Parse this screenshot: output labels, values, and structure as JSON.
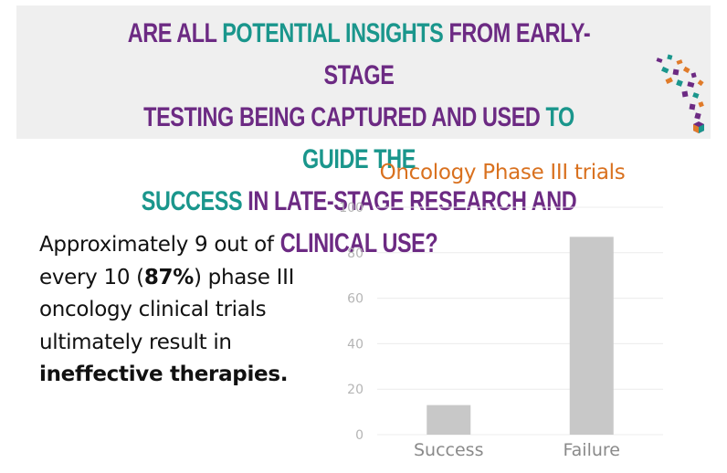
{
  "banner": {
    "line1": [
      {
        "text": "Are all ",
        "color": "purple"
      },
      {
        "text": "potential insights",
        "color": "teal"
      },
      {
        "text": " from early-stage",
        "color": "purple"
      }
    ],
    "line2": [
      {
        "text": "testing being captured and used ",
        "color": "purple"
      },
      {
        "text": "to guide the",
        "color": "teal"
      }
    ],
    "line3": [
      {
        "text": "success",
        "color": "teal"
      },
      {
        "text": " in late-stage research and clinical use?",
        "color": "purple"
      }
    ],
    "colors": {
      "purple": "#6c2a83",
      "teal": "#1a968c"
    }
  },
  "body": {
    "part1": "Approximately 9 out of every 10 (",
    "highlight": "87%",
    "part2": ") phase III oncology clinical trials ultimately result in ",
    "emphasis": "ineffective therapies."
  },
  "chart_data": {
    "type": "bar",
    "title": "Oncology Phase III trials",
    "categories": [
      "Success",
      "Failure"
    ],
    "values": [
      13,
      87
    ],
    "ylim": [
      0,
      100
    ],
    "yticks": [
      "0",
      "20",
      "40",
      "60",
      "80",
      "100"
    ],
    "grid": true,
    "bar_color": "#c8c8c8",
    "title_color": "#d9711f"
  }
}
